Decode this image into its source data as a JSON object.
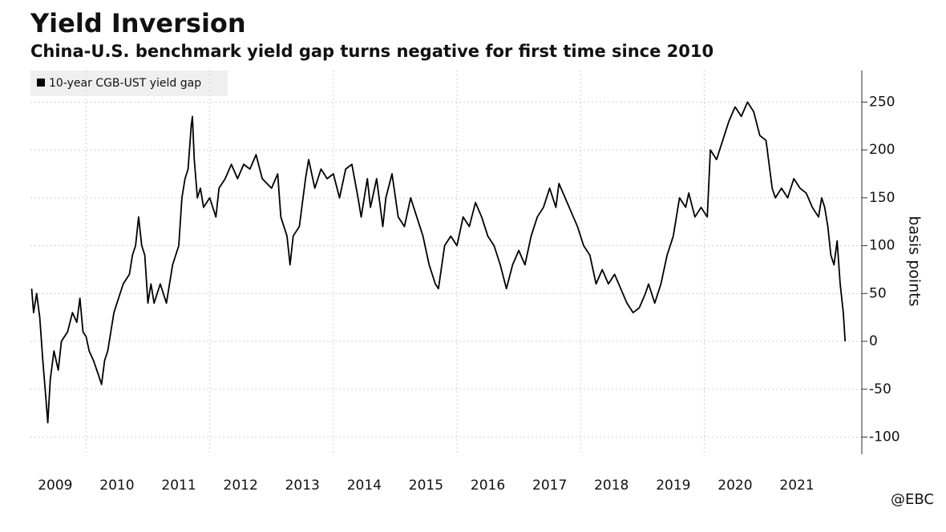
{
  "chart_data": {
    "type": "line",
    "title": "Yield Inversion",
    "subtitle": "China-U.S. benchmark yield gap turns negative for first time since 2010",
    "y_label": "basis points",
    "watermark": "@EBC",
    "legend_position": "top-left",
    "grid": true,
    "xlim": [
      2009.1,
      2022.55
    ],
    "xticks": [
      2009,
      2010,
      2011,
      2012,
      2013,
      2014,
      2015,
      2016,
      2017,
      2018,
      2019,
      2020,
      2021
    ],
    "ylim": [
      -118,
      283
    ],
    "yticks": [
      -100,
      -50,
      0,
      50,
      100,
      150,
      200,
      250
    ],
    "x": [
      2009.12,
      2009.15,
      2009.2,
      2009.25,
      2009.3,
      2009.35,
      2009.38,
      2009.42,
      2009.48,
      2009.55,
      2009.6,
      2009.7,
      2009.78,
      2009.85,
      2009.9,
      2009.95,
      2010.0,
      2010.05,
      2010.12,
      2010.2,
      2010.25,
      2010.3,
      2010.35,
      2010.45,
      2010.5,
      2010.6,
      2010.7,
      2010.75,
      2010.8,
      2010.85,
      2010.9,
      2010.95,
      2011.0,
      2011.05,
      2011.1,
      2011.2,
      2011.3,
      2011.4,
      2011.5,
      2011.55,
      2011.6,
      2011.65,
      2011.7,
      2011.72,
      2011.75,
      2011.8,
      2011.85,
      2011.9,
      2012.0,
      2012.1,
      2012.15,
      2012.25,
      2012.35,
      2012.45,
      2012.55,
      2012.65,
      2012.75,
      2012.85,
      2013.0,
      2013.1,
      2013.15,
      2013.25,
      2013.3,
      2013.35,
      2013.45,
      2013.55,
      2013.6,
      2013.7,
      2013.8,
      2013.9,
      2014.0,
      2014.1,
      2014.2,
      2014.3,
      2014.4,
      2014.45,
      2014.55,
      2014.6,
      2014.7,
      2014.8,
      2014.85,
      2014.95,
      2015.05,
      2015.15,
      2015.25,
      2015.35,
      2015.45,
      2015.55,
      2015.65,
      2015.7,
      2015.8,
      2015.9,
      2016.0,
      2016.1,
      2016.2,
      2016.3,
      2016.4,
      2016.5,
      2016.6,
      2016.7,
      2016.8,
      2016.9,
      2017.0,
      2017.1,
      2017.2,
      2017.3,
      2017.4,
      2017.5,
      2017.6,
      2017.65,
      2017.75,
      2017.85,
      2017.95,
      2018.05,
      2018.15,
      2018.25,
      2018.35,
      2018.45,
      2018.55,
      2018.65,
      2018.75,
      2018.85,
      2018.95,
      2019.05,
      2019.1,
      2019.2,
      2019.3,
      2019.4,
      2019.5,
      2019.6,
      2019.7,
      2019.75,
      2019.85,
      2019.95,
      2020.05,
      2020.1,
      2020.2,
      2020.3,
      2020.4,
      2020.5,
      2020.6,
      2020.7,
      2020.8,
      2020.9,
      2021.0,
      2021.1,
      2021.15,
      2021.25,
      2021.35,
      2021.45,
      2021.55,
      2021.65,
      2021.75,
      2021.85,
      2021.9,
      2021.95,
      2022.0,
      2022.05,
      2022.1,
      2022.15,
      2022.2,
      2022.25,
      2022.28
    ],
    "series": [
      {
        "name": "10-year CGB-UST yield gap",
        "color": "#000000",
        "values": [
          55,
          30,
          50,
          25,
          -20,
          -60,
          -85,
          -40,
          -10,
          -30,
          0,
          10,
          30,
          20,
          45,
          10,
          5,
          -10,
          -20,
          -35,
          -45,
          -20,
          -10,
          30,
          40,
          60,
          70,
          90,
          100,
          130,
          100,
          90,
          40,
          60,
          40,
          60,
          40,
          80,
          100,
          150,
          170,
          180,
          225,
          235,
          190,
          150,
          160,
          140,
          150,
          130,
          160,
          170,
          185,
          170,
          185,
          180,
          195,
          170,
          160,
          175,
          130,
          110,
          80,
          110,
          120,
          170,
          190,
          160,
          180,
          170,
          175,
          150,
          180,
          185,
          150,
          130,
          170,
          140,
          170,
          120,
          150,
          175,
          130,
          120,
          150,
          130,
          110,
          80,
          60,
          55,
          100,
          110,
          100,
          130,
          120,
          145,
          130,
          110,
          100,
          80,
          55,
          80,
          95,
          80,
          110,
          130,
          140,
          160,
          140,
          165,
          150,
          135,
          120,
          100,
          90,
          60,
          75,
          60,
          70,
          55,
          40,
          30,
          35,
          50,
          60,
          40,
          60,
          90,
          110,
          150,
          140,
          155,
          130,
          140,
          130,
          200,
          190,
          210,
          230,
          245,
          235,
          250,
          240,
          215,
          210,
          160,
          150,
          160,
          150,
          170,
          160,
          155,
          140,
          130,
          150,
          140,
          120,
          90,
          80,
          105,
          60,
          30,
          0
        ]
      }
    ]
  }
}
